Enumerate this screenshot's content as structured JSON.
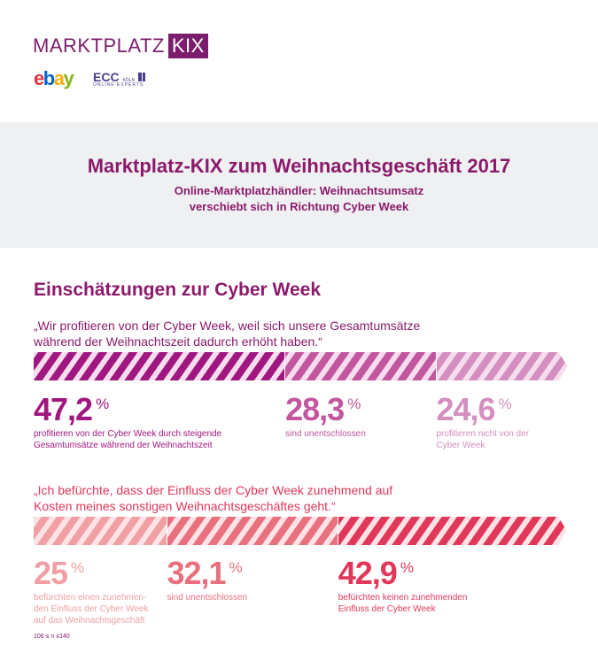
{
  "header": {
    "logo_text": "MARKTPLATZ",
    "logo_badge": "KIX",
    "partner1": "ebay",
    "partner2": "ECC",
    "partner2_sub1": "KÖLN",
    "partner2_sub2": "ONLINE EXPERTS"
  },
  "banner": {
    "title": "Marktplatz-KIX zum Weihnachtsgeschäft 2017",
    "subtitle_line1": "Online-Marktplatzhändler: Weihnachtsumsatz",
    "subtitle_line2": "verschiebt sich in Richtung Cyber Week"
  },
  "section": {
    "heading": "Einschätzungen zur Cyber Week"
  },
  "question1": {
    "quote_line1": "„Wir profitieren von der Cyber Week, weil sich unsere Gesamtumsätze",
    "quote_line2": "während der Weihnachtszeit dadurch erhöht haben.“",
    "color": "#8b1a6b",
    "items": [
      {
        "value": "47,2",
        "unit": "%",
        "share": 47.2,
        "color": "#a0177f",
        "label_line1": "profitieren von der Cyber Week durch steigende",
        "label_line2": "Gesamtumsätze während der Weihnachtszeit"
      },
      {
        "value": "28,3",
        "unit": "%",
        "share": 28.3,
        "color": "#c2569f",
        "label_line1": "sind unentschlossen",
        "label_line2": ""
      },
      {
        "value": "24,6",
        "unit": "%",
        "share": 24.6,
        "color": "#d48ec0",
        "label_line1": "profitieren nicht von der",
        "label_line2": "Cyber Week"
      }
    ]
  },
  "question2": {
    "quote_line1": "„Ich befürchte, dass der Einfluss der Cyber Week zunehmend auf",
    "quote_line2": "Kosten meines sonstigen Weihnachtsgeschäftes geht.“",
    "color": "#e0375a",
    "items": [
      {
        "value": "25",
        "unit": "%",
        "share": 25,
        "color": "#f0a0a4",
        "label_line1": "befürchten einen zunehmen-",
        "label_line2": "den Einfluss der Cyber Week",
        "label_line3": "auf das Weihnachtsgeschäft"
      },
      {
        "value": "32,1",
        "unit": "%",
        "share": 32.1,
        "color": "#e8707f",
        "label_line1": "sind unentschlossen",
        "label_line2": "",
        "label_line3": ""
      },
      {
        "value": "42,9",
        "unit": "%",
        "share": 42.9,
        "color": "#e0375a",
        "label_line1": "befürchten keinen zunehmenden",
        "label_line2": "Einfluss der Cyber Week",
        "label_line3": ""
      }
    ]
  },
  "footnote": "106 ≤ n ≤140"
}
